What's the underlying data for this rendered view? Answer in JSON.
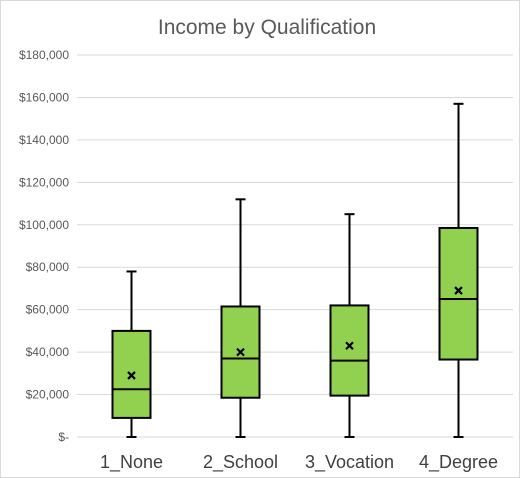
{
  "chart_data": {
    "type": "boxplot",
    "title": "Income by Qualification",
    "xlabel": "",
    "ylabel": "",
    "ylim": [
      0,
      180000
    ],
    "y_ticks": [
      0,
      20000,
      40000,
      60000,
      80000,
      100000,
      120000,
      140000,
      160000,
      180000
    ],
    "y_tick_labels": [
      "$-",
      "$20,000",
      "$40,000",
      "$60,000",
      "$80,000",
      "$100,000",
      "$120,000",
      "$140,000",
      "$160,000",
      "$180,000"
    ],
    "grid": true,
    "legend": "none",
    "categories": [
      "1_None",
      "2_School",
      "3_Vocation",
      "4_Degree"
    ],
    "series": [
      {
        "boxes": [
          {
            "min": 0,
            "q1": 9000,
            "median": 22500,
            "q3": 50000,
            "max": 78000,
            "mean": 29000
          },
          {
            "min": 0,
            "q1": 18500,
            "median": 37000,
            "q3": 61500,
            "max": 112000,
            "mean": 40000
          },
          {
            "min": 0,
            "q1": 19500,
            "median": 36000,
            "q3": 62000,
            "max": 105000,
            "mean": 43000
          },
          {
            "min": 0,
            "q1": 36500,
            "median": 65000,
            "q3": 98500,
            "max": 157000,
            "mean": 69000
          }
        ]
      }
    ],
    "colors": {
      "box_fill": "#92d050",
      "box_stroke": "#000000",
      "gridline": "#d9d9d9",
      "mean_marker": "#000000"
    }
  }
}
